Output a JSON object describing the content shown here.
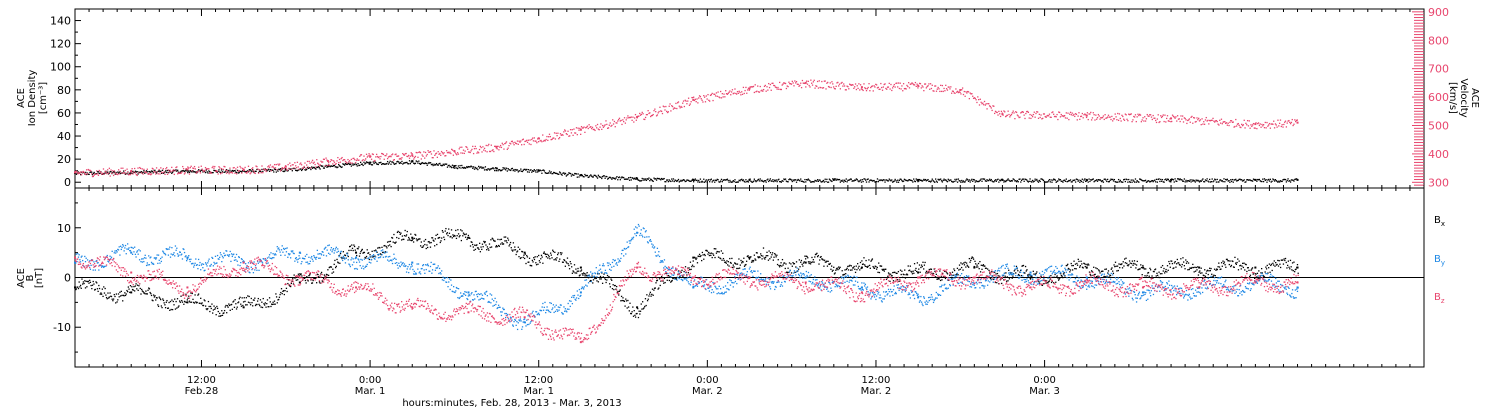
{
  "chart_data": [
    {
      "type": "scatter",
      "panel": "top",
      "ylabel_left": [
        "ACE",
        "Ion Density",
        "[cm⁻³]"
      ],
      "ylabel_right": [
        "ACE",
        "Velocity",
        "[km/s]"
      ],
      "ylim_left": [
        -5,
        150
      ],
      "ylim_right": [
        280,
        910
      ],
      "yticks_left": [
        0,
        20,
        40,
        60,
        80,
        100,
        120,
        140
      ],
      "yticks_right": [
        300,
        400,
        500,
        600,
        700,
        800,
        900
      ],
      "right_axis_color": "#e8466e",
      "series": [
        {
          "name": "",
          "axis": "left",
          "color": "#000000",
          "x_hours": [
            0,
            4,
            8,
            12,
            15,
            18,
            21,
            24,
            27,
            30,
            33,
            36,
            40,
            44,
            48,
            54,
            60,
            66,
            72,
            78,
            84,
            87
          ],
          "y": [
            8,
            9,
            10,
            10,
            11,
            14,
            17,
            18,
            14,
            12,
            10,
            6,
            3,
            2,
            2,
            2,
            2,
            2,
            2,
            2,
            2,
            2
          ]
        },
        {
          "name": "",
          "axis": "right",
          "color": "#e8466e",
          "x_hours": [
            0,
            4,
            8,
            12,
            15,
            18,
            21,
            24,
            27,
            30,
            33,
            36,
            40,
            44,
            48,
            52,
            56,
            60,
            63,
            66,
            72,
            78,
            84,
            87
          ],
          "y": [
            335,
            340,
            345,
            345,
            355,
            375,
            390,
            395,
            410,
            425,
            455,
            485,
            530,
            590,
            630,
            650,
            635,
            640,
            625,
            540,
            535,
            525,
            505,
            510
          ]
        }
      ]
    },
    {
      "type": "scatter",
      "panel": "bottom",
      "ylabel_left": [
        "ACE",
        "B",
        "[nT]"
      ],
      "ylim": [
        -18,
        18
      ],
      "yticks": [
        -10,
        0,
        10
      ],
      "series": [
        {
          "name": "B",
          "sub": "x",
          "color": "#000000",
          "x_hours": [
            0,
            4,
            8,
            12,
            16,
            20,
            24,
            28,
            32,
            36,
            40,
            44,
            48,
            52,
            56,
            60,
            64,
            68,
            72,
            76,
            80,
            84,
            87
          ],
          "y": [
            -2,
            -3,
            -5,
            -6,
            -1,
            5,
            8,
            8,
            5,
            2,
            -6,
            4,
            4,
            3,
            2,
            1,
            2,
            0,
            2,
            2,
            2,
            2,
            2
          ]
        },
        {
          "name": "B",
          "sub": "y",
          "color": "#1e88e5",
          "x_hours": [
            0,
            4,
            8,
            12,
            16,
            20,
            24,
            28,
            32,
            36,
            40,
            44,
            48,
            52,
            56,
            60,
            64,
            68,
            72,
            76,
            80,
            84,
            87
          ],
          "y": [
            3,
            5,
            4,
            3,
            5,
            4,
            3,
            -3,
            -9,
            -3,
            9,
            -2,
            0,
            0,
            -2,
            -4,
            0,
            1,
            0,
            -3,
            -2,
            -1,
            -2
          ]
        },
        {
          "name": "B",
          "sub": "z",
          "color": "#e8466e",
          "x_hours": [
            0,
            4,
            8,
            12,
            16,
            20,
            24,
            28,
            32,
            36,
            40,
            44,
            48,
            52,
            56,
            60,
            64,
            68,
            72,
            76,
            80,
            84,
            87
          ],
          "y": [
            4,
            1,
            -2,
            3,
            0,
            -2,
            -6,
            -7,
            -8,
            -13,
            2,
            0,
            0,
            -1,
            -3,
            0,
            0,
            -2,
            -1,
            -2,
            -2,
            -1,
            -1
          ]
        }
      ]
    }
  ],
  "x_axis": {
    "xlim_hours": [
      0,
      96
    ],
    "xlabel": "hours:minutes, Feb. 28, 2013 - Mar. 3, 2013",
    "ticks": [
      {
        "hour": 9,
        "top": "12:00",
        "bottom": "Feb.28"
      },
      {
        "hour": 21,
        "top": "0:00",
        "bottom": "Mar. 1"
      },
      {
        "hour": 33,
        "top": "12:00",
        "bottom": "Mar. 1"
      },
      {
        "hour": 45,
        "top": "0:00",
        "bottom": "Mar. 2"
      },
      {
        "hour": 57,
        "top": "12:00",
        "bottom": "Mar. 2"
      },
      {
        "hour": 69,
        "top": "0:00",
        "bottom": "Mar. 3"
      }
    ],
    "minor_tick_step_hours": 1
  },
  "legend": [
    {
      "name": "B",
      "sub": "x",
      "color": "#000000"
    },
    {
      "name": "B",
      "sub": "y",
      "color": "#1e88e5"
    },
    {
      "name": "B",
      "sub": "z",
      "color": "#e8466e"
    }
  ]
}
